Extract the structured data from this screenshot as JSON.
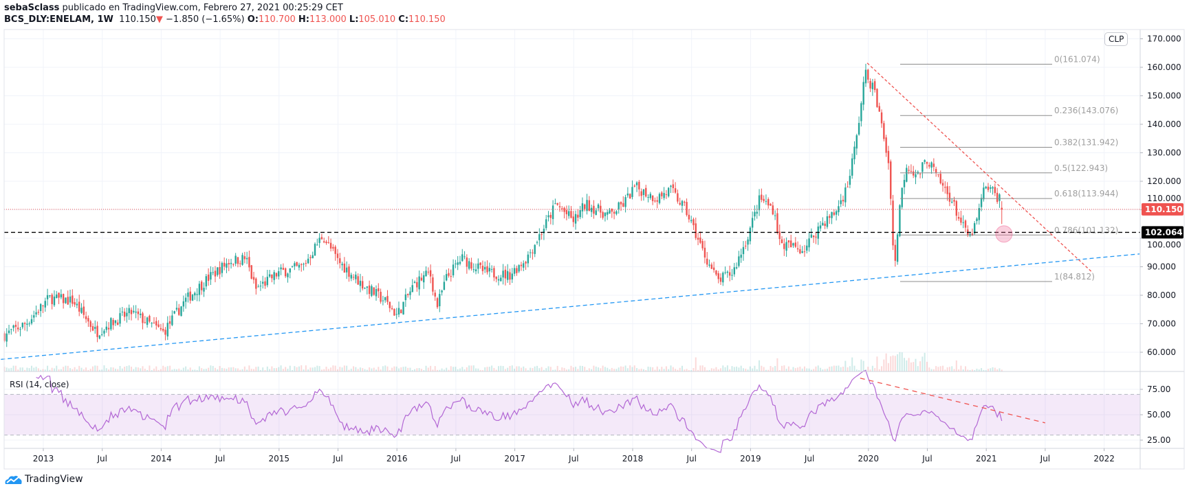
{
  "header": {
    "author": "sebaSclass",
    "published": "publicado en TradingView.com, Febrero 27, 2021 00:25:29 CET",
    "symbol": "BCS_DLY:ENELAM, 1W",
    "last": "110.150",
    "change": "−1.850 (−1.65%)",
    "o_label": "O:",
    "o": "110.700",
    "h_label": "H:",
    "h": "113.000",
    "l_label": "L:",
    "l": "105.010",
    "c_label": "C:",
    "c": "110.150"
  },
  "currency": "CLP",
  "footer": {
    "brand": "TradingView"
  },
  "colors": {
    "up": "#26a69a",
    "down": "#ef5350",
    "rsi": "#b266d4",
    "trend_blue": "#2196f3",
    "trend_red": "#ef5350"
  },
  "chart_data": {
    "type": "candlestick",
    "interval": "1W",
    "price_axis": {
      "ticks": [
        "170.000",
        "160.000",
        "150.000",
        "140.000",
        "130.000",
        "120.000",
        "110.000",
        "100.000",
        "90.000",
        "80.000",
        "70.000",
        "60.000"
      ],
      "range": [
        53,
        174
      ]
    },
    "time_axis": {
      "ticks": [
        {
          "label": "2013",
          "t": 2013.0
        },
        {
          "label": "Jul",
          "t": 2013.5
        },
        {
          "label": "2014",
          "t": 2014.0
        },
        {
          "label": "Jul",
          "t": 2014.5
        },
        {
          "label": "2015",
          "t": 2015.0
        },
        {
          "label": "Jul",
          "t": 2015.5
        },
        {
          "label": "2016",
          "t": 2016.0
        },
        {
          "label": "Jul",
          "t": 2016.5
        },
        {
          "label": "2017",
          "t": 2017.0
        },
        {
          "label": "Jul",
          "t": 2017.5
        },
        {
          "label": "2018",
          "t": 2018.0
        },
        {
          "label": "Jul",
          "t": 2018.5
        },
        {
          "label": "2019",
          "t": 2019.0
        },
        {
          "label": "Jul",
          "t": 2019.5
        },
        {
          "label": "2020",
          "t": 2020.0
        },
        {
          "label": "Jul",
          "t": 2020.5
        },
        {
          "label": "2021",
          "t": 2021.0
        },
        {
          "label": "Jul",
          "t": 2021.5
        },
        {
          "label": "2022",
          "t": 2022.0
        }
      ]
    },
    "price_keyframes": [
      [
        2012.67,
        66
      ],
      [
        2012.85,
        70
      ],
      [
        2013.05,
        79
      ],
      [
        2013.25,
        78
      ],
      [
        2013.45,
        67
      ],
      [
        2013.6,
        71
      ],
      [
        2013.75,
        74
      ],
      [
        2013.9,
        70
      ],
      [
        2014.02,
        67
      ],
      [
        2014.2,
        78
      ],
      [
        2014.4,
        86
      ],
      [
        2014.58,
        92
      ],
      [
        2014.72,
        93
      ],
      [
        2014.8,
        82
      ],
      [
        2015.0,
        88
      ],
      [
        2015.2,
        90
      ],
      [
        2015.37,
        101
      ],
      [
        2015.5,
        92
      ],
      [
        2015.7,
        84
      ],
      [
        2015.9,
        78
      ],
      [
        2016.0,
        73
      ],
      [
        2016.15,
        84
      ],
      [
        2016.28,
        88
      ],
      [
        2016.34,
        76
      ],
      [
        2016.42,
        86
      ],
      [
        2016.55,
        93
      ],
      [
        2016.75,
        88
      ],
      [
        2016.95,
        87
      ],
      [
        2017.1,
        93
      ],
      [
        2017.25,
        104
      ],
      [
        2017.35,
        112
      ],
      [
        2017.5,
        106
      ],
      [
        2017.6,
        112
      ],
      [
        2017.8,
        108
      ],
      [
        2017.92,
        112
      ],
      [
        2018.02,
        118
      ],
      [
        2018.2,
        114
      ],
      [
        2018.32,
        117
      ],
      [
        2018.45,
        110
      ],
      [
        2018.6,
        95
      ],
      [
        2018.72,
        85
      ],
      [
        2018.85,
        88
      ],
      [
        2018.97,
        100
      ],
      [
        2019.08,
        114
      ],
      [
        2019.2,
        110
      ],
      [
        2019.25,
        98
      ],
      [
        2019.45,
        96
      ],
      [
        2019.6,
        105
      ],
      [
        2019.72,
        109
      ],
      [
        2019.82,
        118
      ],
      [
        2019.9,
        135
      ],
      [
        2019.97,
        158
      ],
      [
        2020.05,
        152
      ],
      [
        2020.12,
        138
      ],
      [
        2020.18,
        124
      ],
      [
        2020.22,
        87
      ],
      [
        2020.26,
        110
      ],
      [
        2020.32,
        126
      ],
      [
        2020.42,
        122
      ],
      [
        2020.5,
        128
      ],
      [
        2020.6,
        120
      ],
      [
        2020.7,
        114
      ],
      [
        2020.8,
        104
      ],
      [
        2020.86,
        100
      ],
      [
        2020.92,
        106
      ],
      [
        2020.97,
        116
      ],
      [
        2021.02,
        118
      ],
      [
        2021.08,
        115
      ],
      [
        2021.12,
        114
      ],
      [
        2021.15,
        110.15
      ]
    ],
    "horizontal_lines": [
      {
        "name": "last-price",
        "value": 110.15,
        "label": "110.150",
        "style": "dotted",
        "color": "#ef5350"
      },
      {
        "name": "support",
        "value": 102.064,
        "label": "102.064",
        "style": "dashed",
        "color": "#000000"
      }
    ],
    "fibonacci": {
      "from": 161.074,
      "to": 84.812,
      "levels": [
        {
          "label": "0(161.074)",
          "value": 161.074
        },
        {
          "label": "0.236(143.076)",
          "value": 143.076
        },
        {
          "label": "0.382(131.942)",
          "value": 131.942
        },
        {
          "label": "0.5(122.943)",
          "value": 122.943
        },
        {
          "label": "0.618(113.944)",
          "value": 113.944
        },
        {
          "label": "0.786(101.132)",
          "value": 101.132
        },
        {
          "label": "1(84.812)",
          "value": 84.812
        }
      ]
    },
    "trendlines": [
      {
        "name": "support-trendline",
        "from": [
          2012.64,
          57.5
        ],
        "to": [
          2022.3,
          94.5
        ],
        "color": "#2196f3"
      },
      {
        "name": "resistance-trendline",
        "from": [
          2019.99,
          161.5
        ],
        "to": [
          2021.9,
          88
        ],
        "color": "#ef5350"
      }
    ],
    "marker": {
      "t": 2021.15,
      "value": 101.5
    },
    "rsi": {
      "title": "RSI (14, close)",
      "period": 14,
      "ticks": [
        "75.00",
        "50.00",
        "25.00"
      ],
      "band": [
        30,
        70
      ],
      "trendline": {
        "from": [
          2019.93,
          86
        ],
        "to": [
          2021.5,
          42
        ]
      }
    }
  }
}
